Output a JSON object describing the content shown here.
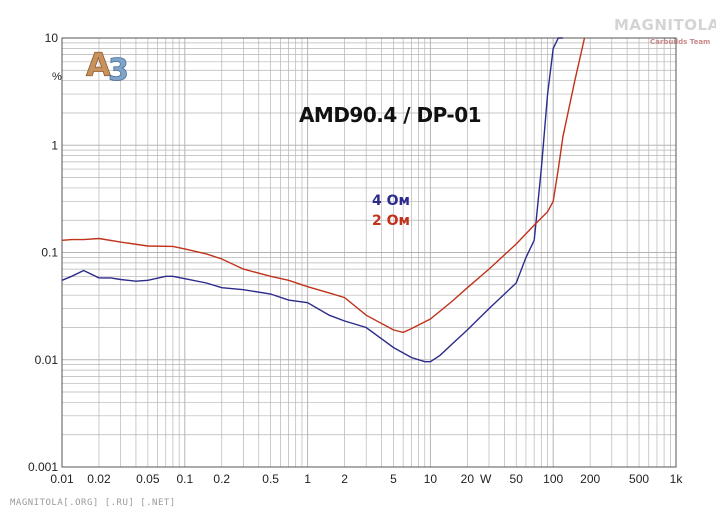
{
  "watermark_top": "MAGNITOLA",
  "watermark_team": "Carbuilds Team",
  "watermark_bottom": "MAGNITOLA[.ORG] [.RU] [.NET]",
  "logo": "A3",
  "colors": {
    "series_4ohm": "#2b2b8c",
    "series_2ohm": "#c0321b",
    "grid": "#b5b5b5",
    "axis": "#555555"
  },
  "chart_data": {
    "type": "line",
    "title": "AMD90.4 / DP-01",
    "xlabel": "W",
    "ylabel": "%",
    "xscale": "log",
    "yscale": "log",
    "xlim": [
      0.01,
      1000
    ],
    "ylim": [
      0.001,
      10
    ],
    "grid": true,
    "legend_position": "center",
    "x_tick_labels": [
      "0.01",
      "0.02",
      "0.05",
      "0.1",
      "0.2",
      "0.5",
      "1",
      "2",
      "5",
      "10",
      "20",
      "50",
      "100",
      "200",
      "500",
      "1k"
    ],
    "x_tick_values": [
      0.01,
      0.02,
      0.05,
      0.1,
      0.2,
      0.5,
      1,
      2,
      5,
      10,
      20,
      50,
      100,
      200,
      500,
      1000
    ],
    "y_tick_labels": [
      "0.001",
      "0.01",
      "0.1",
      "1",
      "10"
    ],
    "y_tick_values": [
      0.001,
      0.01,
      0.1,
      1,
      10
    ],
    "series": [
      {
        "name": "4 Ом",
        "x": [
          0.01,
          0.012,
          0.015,
          0.02,
          0.025,
          0.03,
          0.04,
          0.05,
          0.07,
          0.08,
          0.1,
          0.15,
          0.2,
          0.3,
          0.5,
          0.7,
          1,
          1.5,
          2,
          3,
          5,
          7,
          9,
          10,
          12,
          15,
          20,
          30,
          50,
          60,
          70,
          80,
          90,
          100,
          110,
          120
        ],
        "y": [
          0.055,
          0.06,
          0.068,
          0.058,
          0.058,
          0.056,
          0.054,
          0.055,
          0.06,
          0.06,
          0.057,
          0.052,
          0.047,
          0.045,
          0.041,
          0.036,
          0.034,
          0.026,
          0.023,
          0.02,
          0.013,
          0.0105,
          0.0096,
          0.0096,
          0.011,
          0.014,
          0.019,
          0.03,
          0.052,
          0.09,
          0.13,
          0.6,
          3,
          8,
          10,
          10
        ]
      },
      {
        "name": "2 Ом",
        "x": [
          0.01,
          0.012,
          0.015,
          0.02,
          0.03,
          0.05,
          0.08,
          0.1,
          0.15,
          0.2,
          0.3,
          0.5,
          0.7,
          1,
          1.5,
          2,
          3,
          5,
          6,
          7,
          10,
          15,
          20,
          30,
          50,
          70,
          90,
          100,
          110,
          120,
          150,
          180
        ],
        "y": [
          0.13,
          0.132,
          0.132,
          0.135,
          0.125,
          0.115,
          0.114,
          0.108,
          0.097,
          0.087,
          0.07,
          0.06,
          0.055,
          0.048,
          0.042,
          0.038,
          0.026,
          0.019,
          0.018,
          0.0195,
          0.024,
          0.035,
          0.047,
          0.07,
          0.12,
          0.18,
          0.24,
          0.3,
          0.6,
          1.2,
          4,
          10
        ]
      }
    ]
  },
  "legend": {
    "item1": "4 Ом",
    "item2": "2 Ом"
  }
}
